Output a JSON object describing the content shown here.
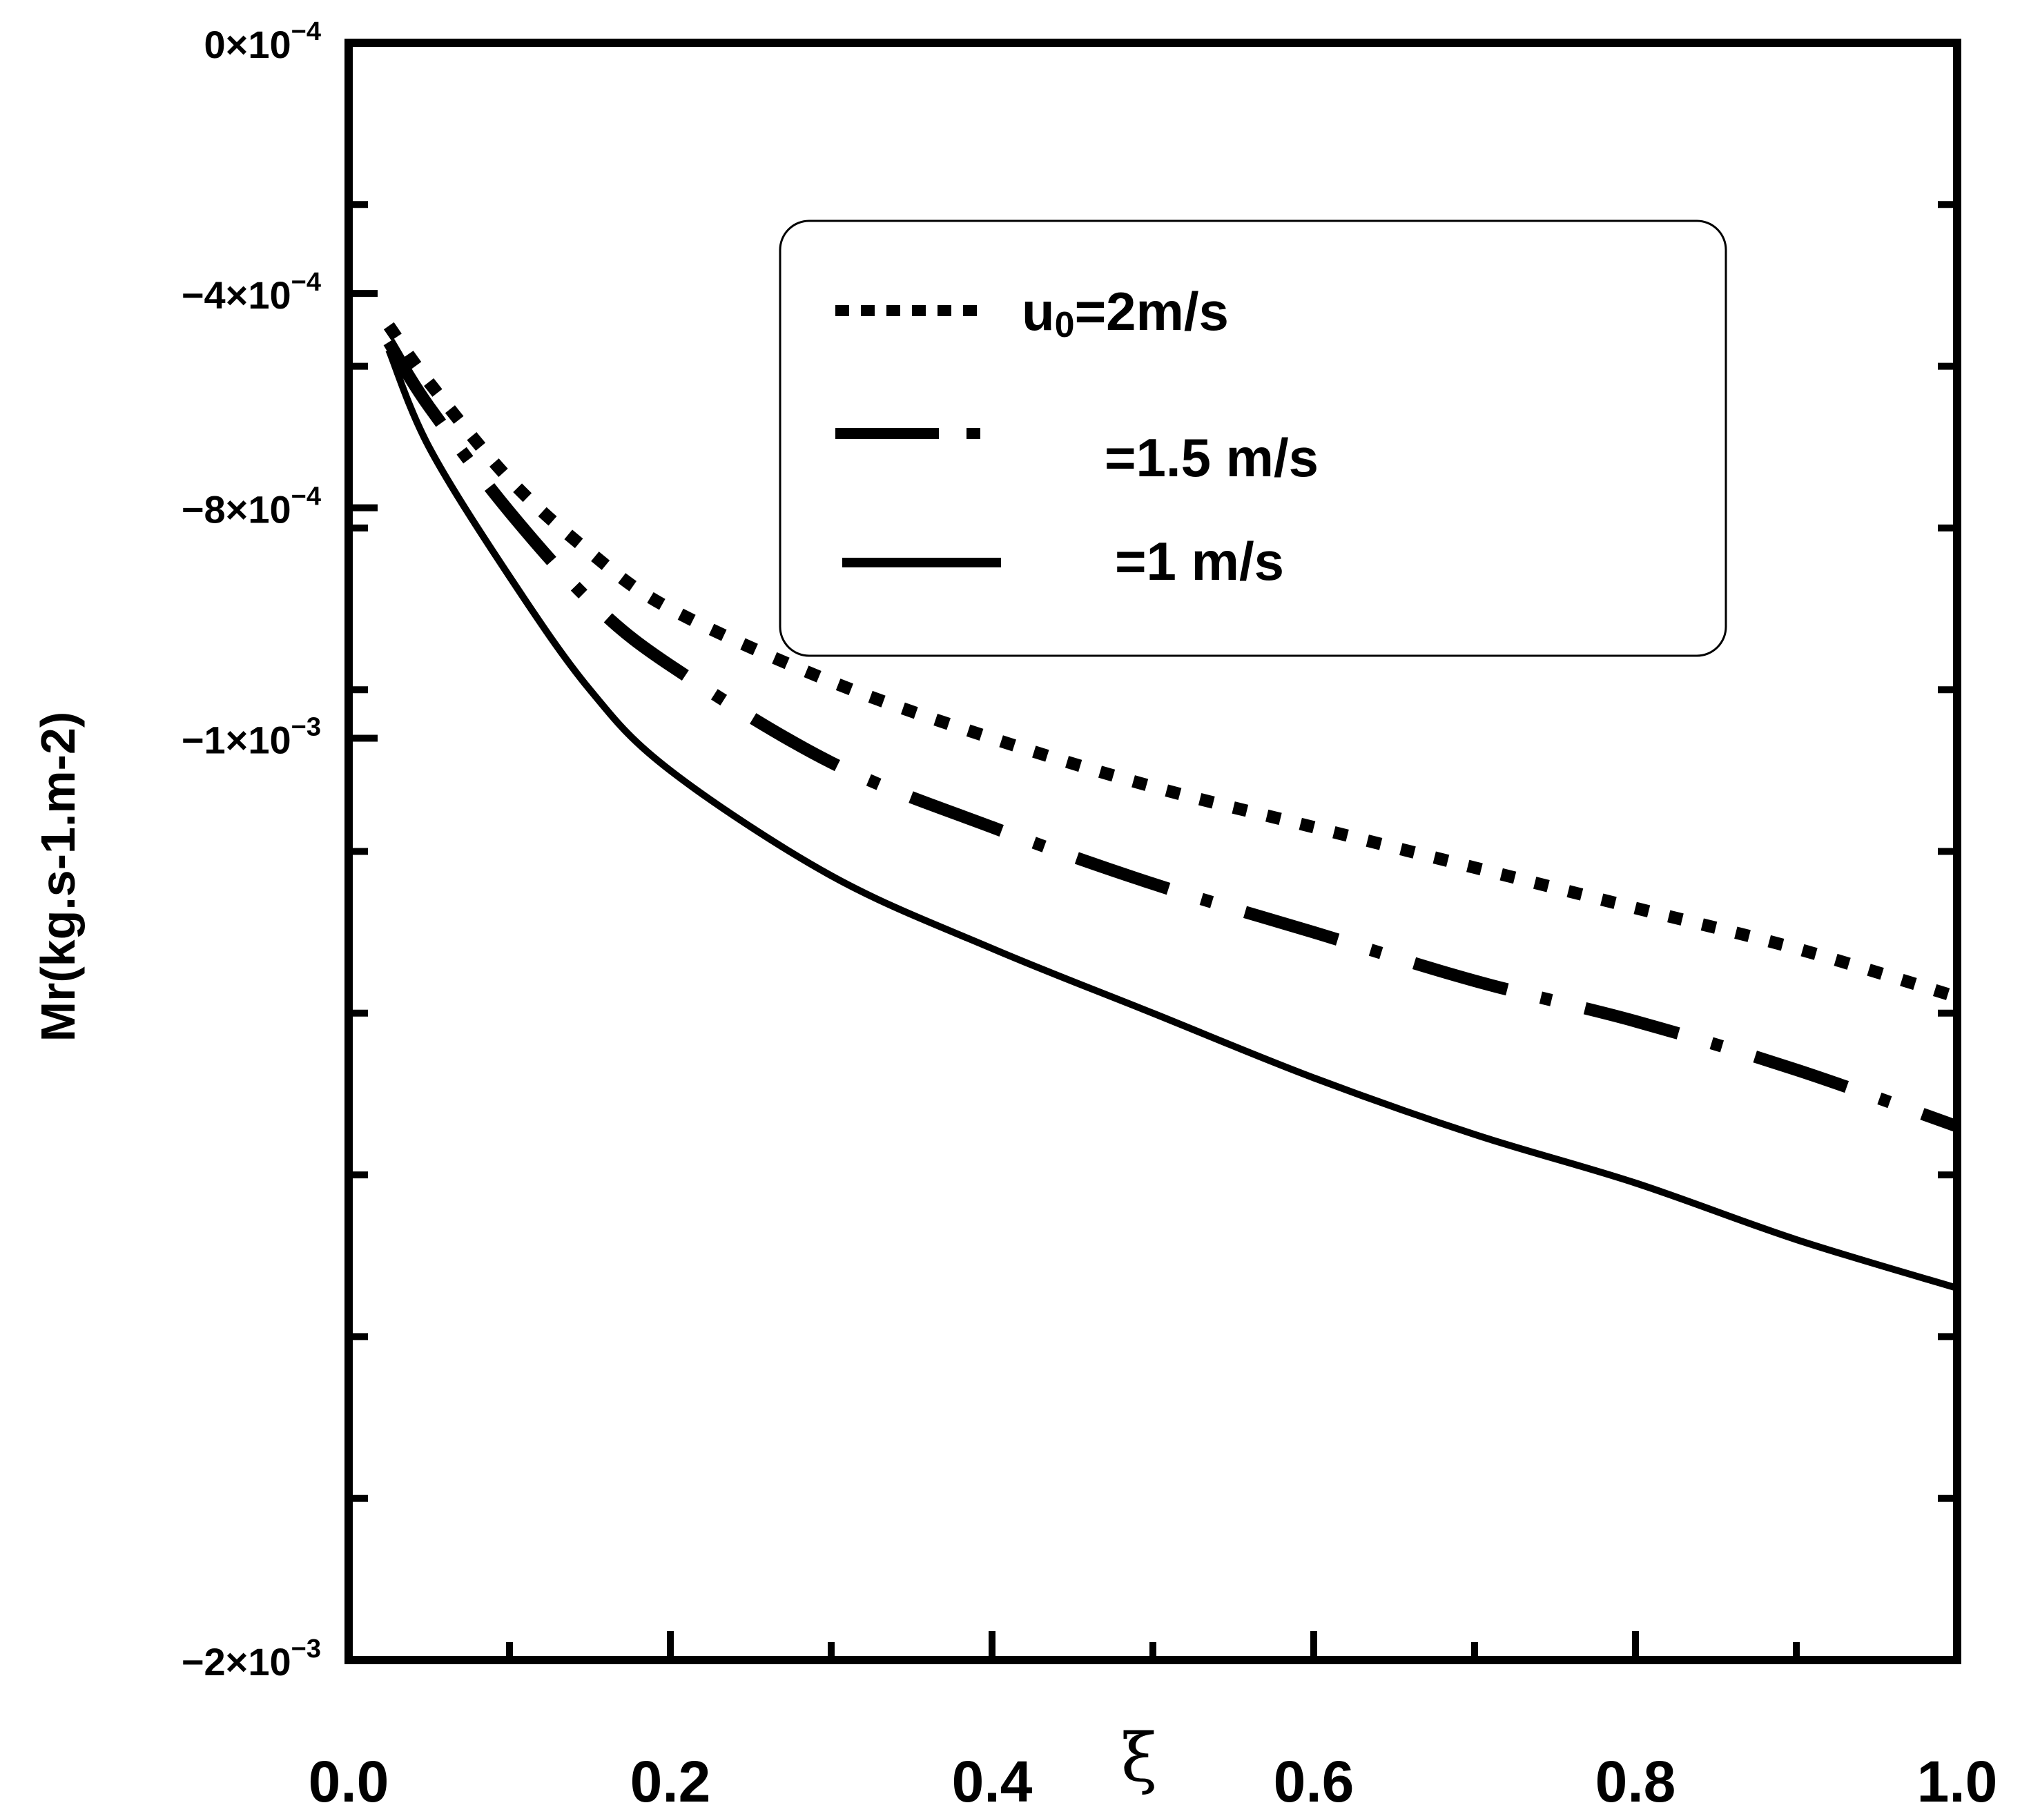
{
  "chart_data": {
    "type": "line",
    "xlabel": "ξ",
    "ylabel": "Mr(kg.s-1.m-2)",
    "xlim": [
      0.0,
      1.0
    ],
    "ylim": [
      -0.002,
      0.0
    ],
    "x_ticks": [
      "0.0",
      "0.2",
      "0.4",
      "0.6",
      "0.8",
      "1.0"
    ],
    "y_ticks": [
      {
        "mantissa": "0×10",
        "exp": "−4"
      },
      {
        "mantissa": "−4×10",
        "exp": "−4"
      },
      {
        "mantissa": "−8×10",
        "exp": "−4"
      },
      {
        "mantissa": "−1×10",
        "exp": "−3"
      },
      {
        "mantissa": "−2×10",
        "exp": "−3"
      }
    ],
    "legend_position": "top-right",
    "legend": [
      {
        "style": "dotted",
        "prefix": "u",
        "sub": "0",
        "text": "=2m/s"
      },
      {
        "style": "dashdot",
        "prefix": "",
        "sub": "",
        "text": "=1.5 m/s"
      },
      {
        "style": "solid",
        "prefix": "",
        "sub": "",
        "text": "=1 m/s"
      }
    ],
    "series": [
      {
        "name": "u0=2m/s",
        "style": "dotted",
        "points": [
          [
            0.025,
            -0.00035
          ],
          [
            0.05,
            -0.00042
          ],
          [
            0.1,
            -0.00054
          ],
          [
            0.15,
            -0.00063
          ],
          [
            0.2,
            -0.0007
          ],
          [
            0.3,
            -0.00079
          ],
          [
            0.4,
            -0.00086
          ],
          [
            0.5,
            -0.00092
          ],
          [
            0.6,
            -0.00097
          ],
          [
            0.7,
            -0.00102
          ],
          [
            0.8,
            -0.00107
          ],
          [
            0.9,
            -0.00112
          ],
          [
            1.0,
            -0.00118
          ]
        ]
      },
      {
        "name": "=1.5 m/s",
        "style": "dashdot",
        "points": [
          [
            0.025,
            -0.00037
          ],
          [
            0.05,
            -0.00045
          ],
          [
            0.1,
            -0.00058
          ],
          [
            0.15,
            -0.00069
          ],
          [
            0.2,
            -0.00077
          ],
          [
            0.3,
            -0.00089
          ],
          [
            0.4,
            -0.00097
          ],
          [
            0.5,
            -0.00104
          ],
          [
            0.6,
            -0.0011
          ],
          [
            0.7,
            -0.00116
          ],
          [
            0.8,
            -0.00121
          ],
          [
            0.9,
            -0.00127
          ],
          [
            1.0,
            -0.00134
          ]
        ]
      },
      {
        "name": "=1 m/s",
        "style": "solid",
        "points": [
          [
            0.025,
            -0.00038
          ],
          [
            0.05,
            -0.0005
          ],
          [
            0.1,
            -0.00066
          ],
          [
            0.15,
            -0.0008
          ],
          [
            0.2,
            -0.0009
          ],
          [
            0.3,
            -0.00103
          ],
          [
            0.4,
            -0.00112
          ],
          [
            0.5,
            -0.0012
          ],
          [
            0.6,
            -0.00128
          ],
          [
            0.7,
            -0.00135
          ],
          [
            0.8,
            -0.00141
          ],
          [
            0.9,
            -0.00148
          ],
          [
            1.0,
            -0.00154
          ]
        ]
      }
    ]
  }
}
